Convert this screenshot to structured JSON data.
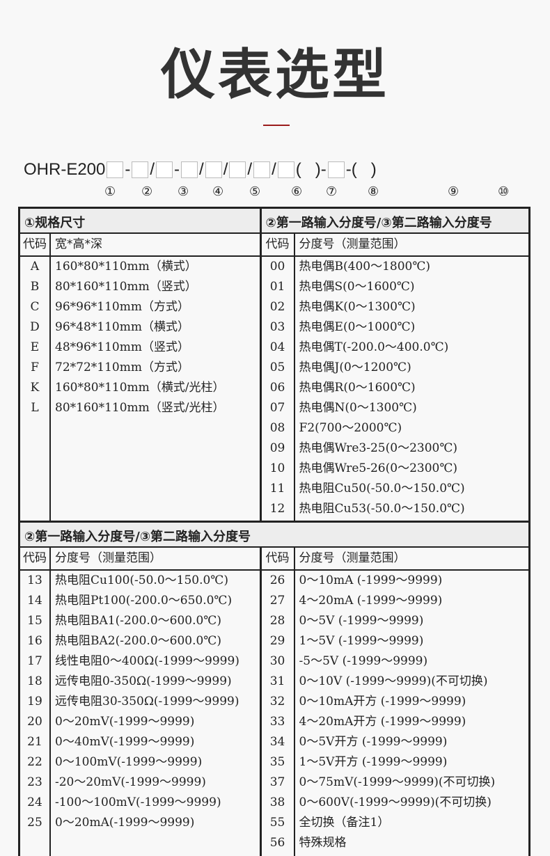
{
  "title": "仪表选型",
  "model_prefix": "OHR-E200",
  "separators": [
    "-",
    "/",
    "-",
    "/",
    "/",
    "/",
    "/",
    "(   )-",
    "-(   )"
  ],
  "position_labels": [
    "①",
    "②",
    "③",
    "④",
    "⑤",
    "⑥",
    "⑦",
    "⑧",
    "⑨",
    "⑩"
  ],
  "section1": {
    "left_title": "①规格尺寸",
    "right_title": "②第一路输入分度号/③第二路输入分度号",
    "left_headers": [
      "代码",
      "宽*高*深"
    ],
    "right_headers": [
      "代码",
      "分度号（测量范围）"
    ],
    "left_rows": [
      [
        "A",
        "160*80*110mm（横式）"
      ],
      [
        "B",
        "80*160*110mm（竖式）"
      ],
      [
        "C",
        "96*96*110mm（方式）"
      ],
      [
        "D",
        "96*48*110mm（横式）"
      ],
      [
        "E",
        "48*96*110mm（竖式）"
      ],
      [
        "F",
        "72*72*110mm（方式）"
      ],
      [
        "K",
        "160*80*110mm（横式/光柱）"
      ],
      [
        "L",
        "80*160*110mm（竖式/光柱）"
      ]
    ],
    "right_rows": [
      [
        "00",
        "热电偶B(400～1800℃)"
      ],
      [
        "01",
        "热电偶S(0～1600℃)"
      ],
      [
        "02",
        "热电偶K(0～1300℃)"
      ],
      [
        "03",
        "热电偶E(0～1000℃)"
      ],
      [
        "04",
        "热电偶T(-200.0～400.0℃)"
      ],
      [
        "05",
        "热电偶J(0～1200℃)"
      ],
      [
        "06",
        "热电偶R(0～1600℃)"
      ],
      [
        "07",
        "热电偶N(0～1300℃)"
      ],
      [
        "08",
        "F2(700～2000℃)"
      ],
      [
        "09",
        "热电偶Wre3-25(0～2300℃)"
      ],
      [
        "10",
        "热电偶Wre5-26(0～2300℃)"
      ],
      [
        "11",
        "热电阻Cu50(-50.0～150.0℃)"
      ],
      [
        "12",
        "热电阻Cu53(-50.0～150.0℃)"
      ]
    ]
  },
  "section2": {
    "title": "②第一路输入分度号/③第二路输入分度号",
    "left_headers": [
      "代码",
      "分度号（测量范围）"
    ],
    "right_headers": [
      "代码",
      "分度号（测量范围）"
    ],
    "left_rows": [
      [
        "13",
        "热电阻Cu100(-50.0～150.0℃)"
      ],
      [
        "14",
        "热电阻Pt100(-200.0～650.0℃)"
      ],
      [
        "15",
        "热电阻BA1(-200.0～600.0℃)"
      ],
      [
        "16",
        "热电阻BA2(-200.0～600.0℃)"
      ],
      [
        "17",
        "线性电阻0～400Ω(-1999～9999)"
      ],
      [
        "18",
        "远传电阻0-350Ω(-1999～9999)"
      ],
      [
        "19",
        "远传电阻30-350Ω(-1999～9999)"
      ],
      [
        "20",
        "0～20mV(-1999～9999)"
      ],
      [
        "21",
        "0～40mV(-1999～9999)"
      ],
      [
        "22",
        "0～100mV(-1999～9999)"
      ],
      [
        "23",
        "-20～20mV(-1999～9999)"
      ],
      [
        "24",
        "-100～100mV(-1999～9999)"
      ],
      [
        "25",
        "0～20mA(-1999～9999)"
      ]
    ],
    "right_rows": [
      [
        "26",
        "0～10mA (-1999～9999)"
      ],
      [
        "27",
        "4～20mA (-1999～9999)"
      ],
      [
        "28",
        "0～5V (-1999～9999)"
      ],
      [
        "29",
        "1～5V (-1999～9999)"
      ],
      [
        "30",
        "-5～5V (-1999～9999)"
      ],
      [
        "31",
        "0～10V (-1999～9999)(不可切换)"
      ],
      [
        "32",
        "0～10mA开方 (-1999～9999)"
      ],
      [
        "33",
        "4～20mA开方 (-1999～9999)"
      ],
      [
        "34",
        "0～5V开方 (-1999～9999)"
      ],
      [
        "35",
        "1～5V开方 (-1999～9999)"
      ],
      [
        "37",
        "0～75mV(-1999～9999)(不可切换)"
      ],
      [
        "38",
        "0～600V(-1999～9999)(不可切换)"
      ],
      [
        "55",
        "全切换（备注1）"
      ],
      [
        "56",
        "特殊规格"
      ]
    ]
  }
}
